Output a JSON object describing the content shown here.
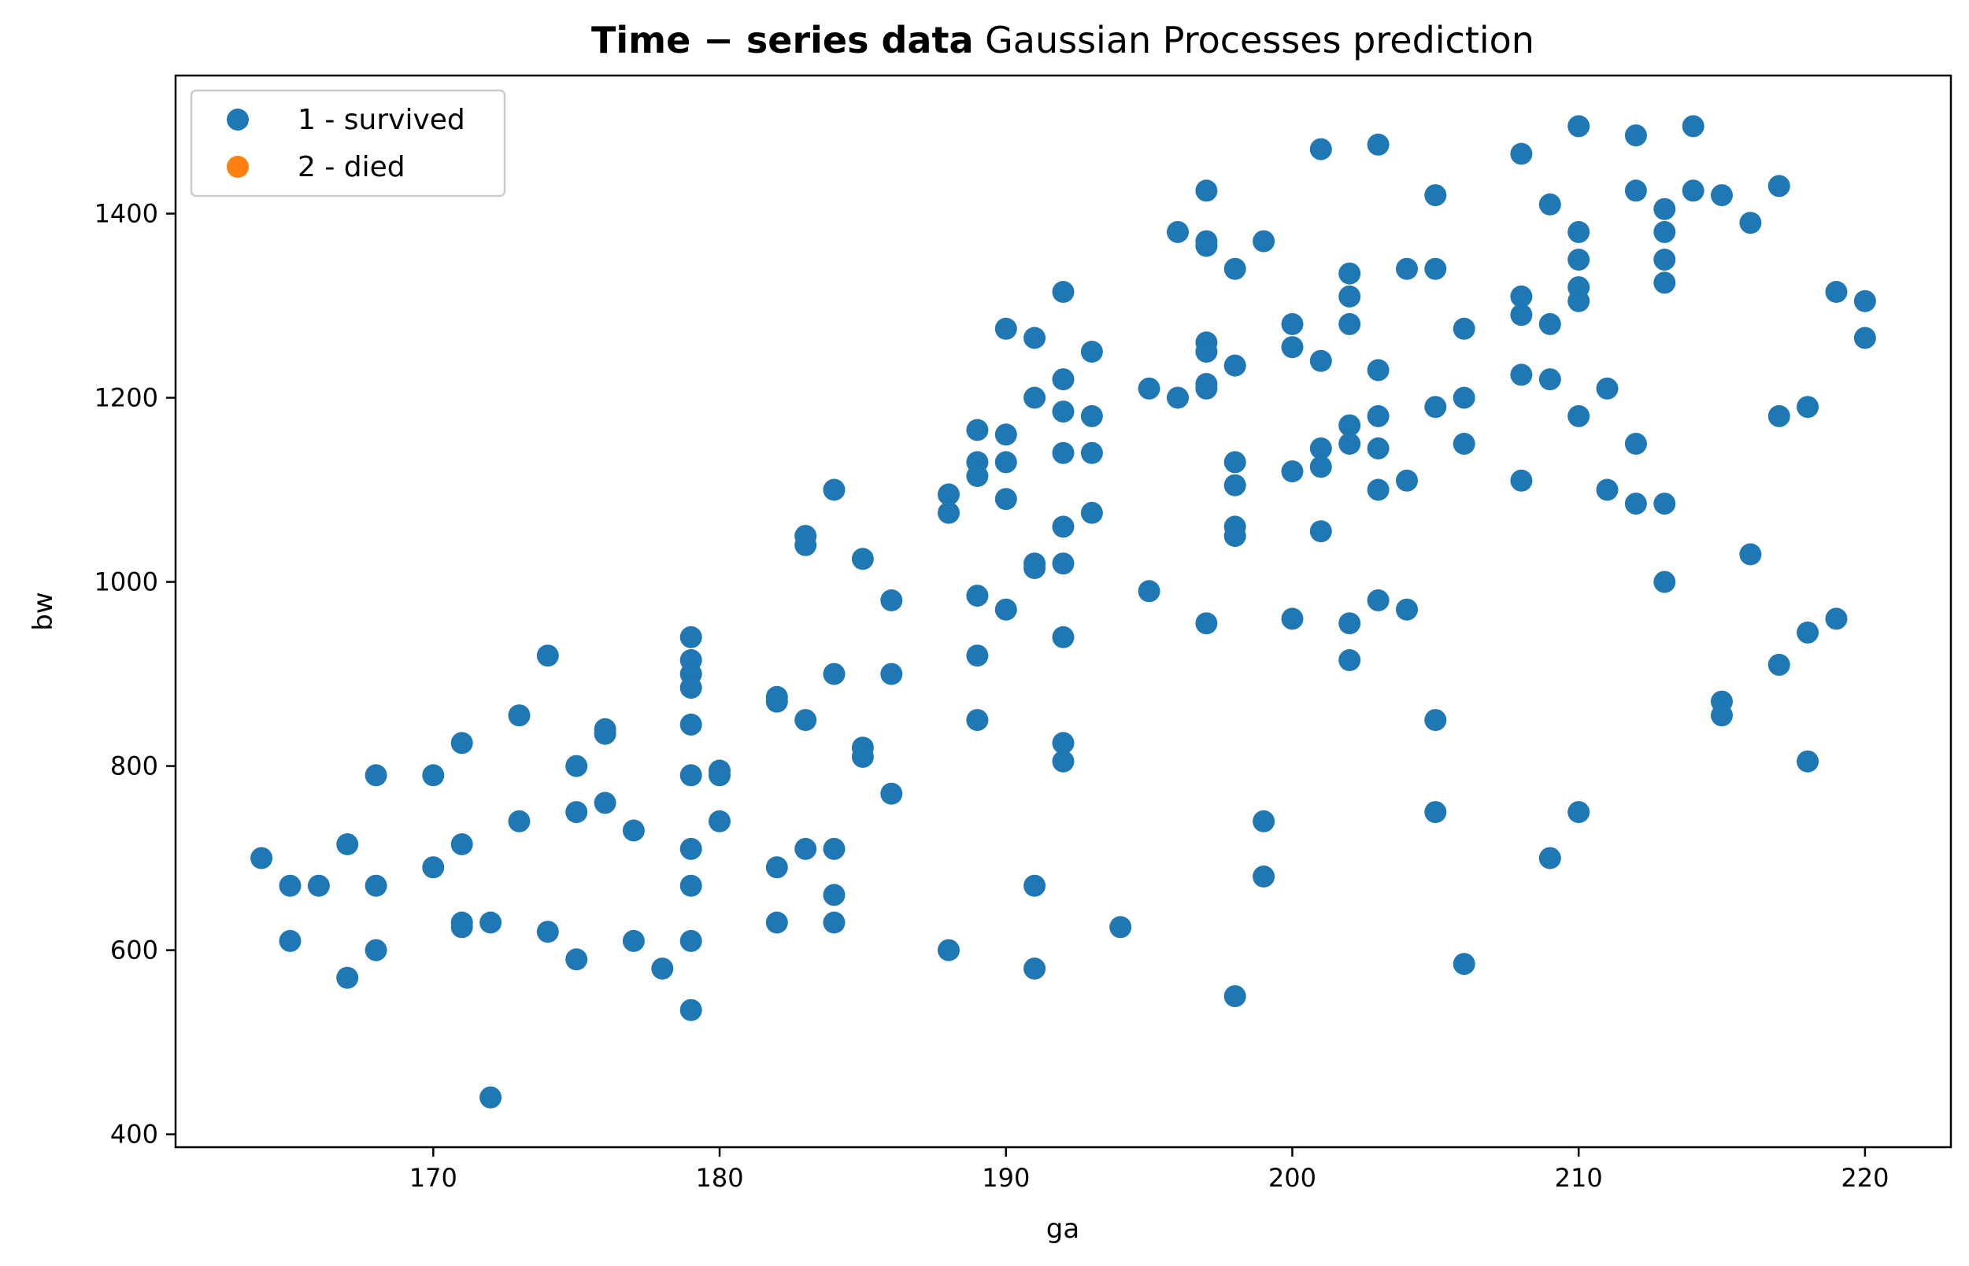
{
  "chart_data": {
    "type": "scatter",
    "title_bold": "Time − series data",
    "title_rest": " Gaussian Processes prediction",
    "xlabel": "ga",
    "ylabel": "bw",
    "xlim": [
      161,
      223
    ],
    "ylim": [
      386,
      1550
    ],
    "xticks": [
      170,
      180,
      190,
      200,
      210,
      220
    ],
    "yticks": [
      400,
      600,
      800,
      1000,
      1200,
      1400
    ],
    "legend_position": "top-left",
    "grid": false,
    "series": [
      {
        "name": "1 - survived",
        "color": "#1f77b4",
        "points": [
          [
            164,
            700
          ],
          [
            165,
            670
          ],
          [
            165,
            610
          ],
          [
            166,
            670
          ],
          [
            167,
            715
          ],
          [
            167,
            570
          ],
          [
            168,
            790
          ],
          [
            168,
            670
          ],
          [
            168,
            600
          ],
          [
            170,
            790
          ],
          [
            170,
            690
          ],
          [
            171,
            825
          ],
          [
            171,
            715
          ],
          [
            171,
            630
          ],
          [
            171,
            625
          ],
          [
            172,
            630
          ],
          [
            172,
            440
          ],
          [
            173,
            855
          ],
          [
            173,
            740
          ],
          [
            174,
            920
          ],
          [
            174,
            620
          ],
          [
            175,
            800
          ],
          [
            175,
            750
          ],
          [
            175,
            590
          ],
          [
            176,
            840
          ],
          [
            176,
            835
          ],
          [
            176,
            760
          ],
          [
            177,
            730
          ],
          [
            177,
            610
          ],
          [
            178,
            580
          ],
          [
            179,
            940
          ],
          [
            179,
            915
          ],
          [
            179,
            900
          ],
          [
            179,
            885
          ],
          [
            179,
            845
          ],
          [
            179,
            790
          ],
          [
            179,
            710
          ],
          [
            179,
            670
          ],
          [
            179,
            610
          ],
          [
            179,
            535
          ],
          [
            180,
            795
          ],
          [
            180,
            790
          ],
          [
            180,
            740
          ],
          [
            182,
            875
          ],
          [
            182,
            870
          ],
          [
            182,
            690
          ],
          [
            182,
            630
          ],
          [
            183,
            1050
          ],
          [
            183,
            1040
          ],
          [
            183,
            850
          ],
          [
            183,
            710
          ],
          [
            184,
            1100
          ],
          [
            184,
            900
          ],
          [
            184,
            710
          ],
          [
            184,
            660
          ],
          [
            184,
            630
          ],
          [
            185,
            1025
          ],
          [
            185,
            820
          ],
          [
            185,
            810
          ],
          [
            186,
            980
          ],
          [
            186,
            900
          ],
          [
            186,
            770
          ],
          [
            188,
            1095
          ],
          [
            188,
            1075
          ],
          [
            188,
            600
          ],
          [
            189,
            1165
          ],
          [
            189,
            1130
          ],
          [
            189,
            1115
          ],
          [
            189,
            985
          ],
          [
            189,
            920
          ],
          [
            189,
            850
          ],
          [
            190,
            1275
          ],
          [
            190,
            1160
          ],
          [
            190,
            1130
          ],
          [
            190,
            1090
          ],
          [
            190,
            970
          ],
          [
            191,
            1265
          ],
          [
            191,
            1200
          ],
          [
            191,
            1020
          ],
          [
            191,
            1015
          ],
          [
            191,
            670
          ],
          [
            191,
            580
          ],
          [
            192,
            1315
          ],
          [
            192,
            1220
          ],
          [
            192,
            1185
          ],
          [
            192,
            1140
          ],
          [
            192,
            1060
          ],
          [
            192,
            1020
          ],
          [
            192,
            940
          ],
          [
            192,
            825
          ],
          [
            192,
            805
          ],
          [
            193,
            1250
          ],
          [
            193,
            1180
          ],
          [
            193,
            1140
          ],
          [
            193,
            1075
          ],
          [
            194,
            625
          ],
          [
            195,
            1210
          ],
          [
            195,
            990
          ],
          [
            196,
            1380
          ],
          [
            196,
            1200
          ],
          [
            197,
            1425
          ],
          [
            197,
            1370
          ],
          [
            197,
            1365
          ],
          [
            197,
            1260
          ],
          [
            197,
            1250
          ],
          [
            197,
            1215
          ],
          [
            197,
            1210
          ],
          [
            197,
            955
          ],
          [
            198,
            1340
          ],
          [
            198,
            1235
          ],
          [
            198,
            1130
          ],
          [
            198,
            1105
          ],
          [
            198,
            1060
          ],
          [
            198,
            1050
          ],
          [
            198,
            550
          ],
          [
            199,
            1370
          ],
          [
            199,
            740
          ],
          [
            199,
            680
          ],
          [
            200,
            1280
          ],
          [
            200,
            1255
          ],
          [
            200,
            1120
          ],
          [
            200,
            960
          ],
          [
            201,
            1470
          ],
          [
            201,
            1240
          ],
          [
            201,
            1145
          ],
          [
            201,
            1125
          ],
          [
            201,
            1055
          ],
          [
            202,
            1335
          ],
          [
            202,
            1310
          ],
          [
            202,
            1280
          ],
          [
            202,
            1170
          ],
          [
            202,
            1150
          ],
          [
            202,
            955
          ],
          [
            202,
            915
          ],
          [
            203,
            1475
          ],
          [
            203,
            1230
          ],
          [
            203,
            1180
          ],
          [
            203,
            1145
          ],
          [
            203,
            1100
          ],
          [
            203,
            980
          ],
          [
            204,
            1340
          ],
          [
            204,
            1110
          ],
          [
            204,
            970
          ],
          [
            205,
            1420
          ],
          [
            205,
            1340
          ],
          [
            205,
            1190
          ],
          [
            205,
            850
          ],
          [
            205,
            750
          ],
          [
            206,
            1275
          ],
          [
            206,
            1200
          ],
          [
            206,
            1150
          ],
          [
            206,
            585
          ],
          [
            208,
            1465
          ],
          [
            208,
            1310
          ],
          [
            208,
            1290
          ],
          [
            208,
            1225
          ],
          [
            208,
            1110
          ],
          [
            209,
            1410
          ],
          [
            209,
            1280
          ],
          [
            209,
            1220
          ],
          [
            209,
            700
          ],
          [
            210,
            1495
          ],
          [
            210,
            1380
          ],
          [
            210,
            1350
          ],
          [
            210,
            1320
          ],
          [
            210,
            1305
          ],
          [
            210,
            1180
          ],
          [
            210,
            750
          ],
          [
            211,
            1210
          ],
          [
            211,
            1100
          ],
          [
            212,
            1485
          ],
          [
            212,
            1425
          ],
          [
            212,
            1150
          ],
          [
            212,
            1085
          ],
          [
            213,
            1405
          ],
          [
            213,
            1380
          ],
          [
            213,
            1350
          ],
          [
            213,
            1325
          ],
          [
            213,
            1085
          ],
          [
            213,
            1000
          ],
          [
            214,
            1495
          ],
          [
            214,
            1425
          ],
          [
            215,
            1420
          ],
          [
            215,
            870
          ],
          [
            215,
            855
          ],
          [
            216,
            1390
          ],
          [
            216,
            1030
          ],
          [
            217,
            1430
          ],
          [
            217,
            1180
          ],
          [
            217,
            910
          ],
          [
            218,
            1190
          ],
          [
            218,
            945
          ],
          [
            218,
            805
          ],
          [
            219,
            1315
          ],
          [
            219,
            960
          ],
          [
            220,
            1305
          ],
          [
            220,
            1265
          ]
        ]
      },
      {
        "name": "2 - died",
        "color": "#ff7f0e",
        "points": []
      }
    ]
  }
}
